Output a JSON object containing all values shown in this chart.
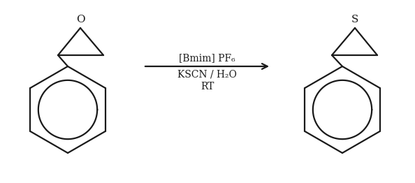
{
  "bg_color": "#ffffff",
  "line_color": "#1a1a1a",
  "line_width": 1.6,
  "arrow_text_above": "[Bmim] PF₆",
  "arrow_text_below1": "KSCN / H₂O",
  "arrow_text_below2": "RT",
  "label_O": "O",
  "label_S": "S",
  "font_size_label": 11,
  "font_size_arrow": 10,
  "figsize": [
    5.94,
    2.62
  ],
  "dpi": 100
}
